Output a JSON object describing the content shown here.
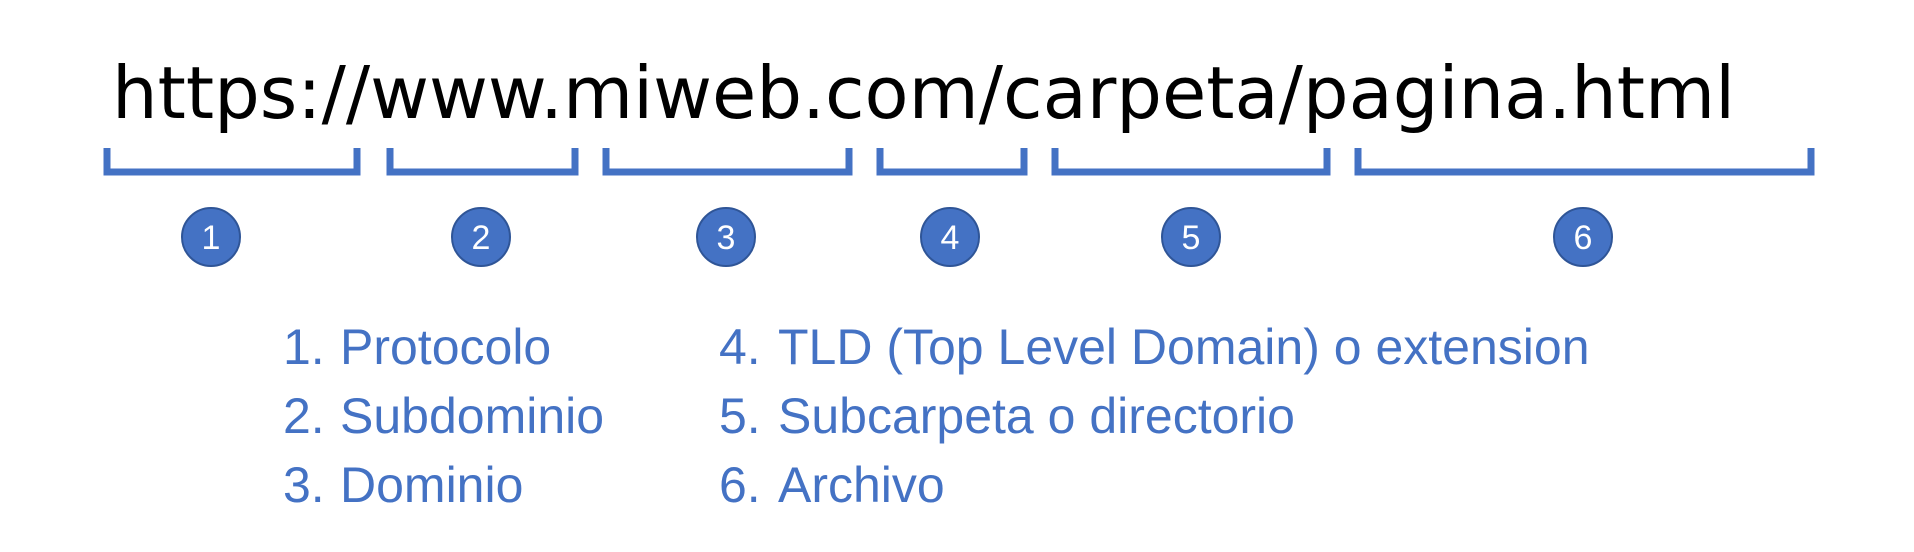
{
  "url": {
    "segments": [
      {
        "text": "https://"
      },
      {
        "text": "www."
      },
      {
        "text": "miweb"
      },
      {
        "text": ".com"
      },
      {
        "text": "/carpeta"
      },
      {
        "text": "/pagina.html"
      }
    ]
  },
  "markers": [
    "1",
    "2",
    "3",
    "4",
    "5",
    "6"
  ],
  "legend": {
    "items": [
      {
        "number": "1.",
        "label": "Protocolo"
      },
      {
        "number": "2.",
        "label": "Subdominio"
      },
      {
        "number": "3.",
        "label": "Dominio"
      },
      {
        "number": "4.",
        "label": "TLD (Top Level Domain) o extension"
      },
      {
        "number": "5.",
        "label": "Subcarpeta o directorio"
      },
      {
        "number": "6.",
        "label": "Archivo"
      }
    ]
  },
  "colors": {
    "accent": "#4472c4",
    "text": "#000000"
  }
}
